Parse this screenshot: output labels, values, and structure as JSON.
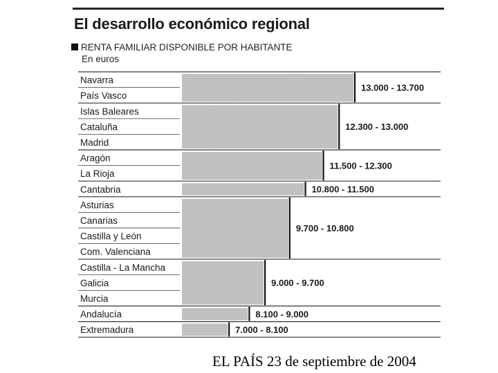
{
  "header": {
    "title": "El desarrollo económico regional",
    "subtitle": "RENTA FAMILIAR DISPONIBLE POR HABITANTE",
    "unit": "En euros"
  },
  "footer": {
    "source": "EL PAÍS 23 de septiembre de 2004"
  },
  "chart_data": {
    "type": "bar",
    "orientation": "horizontal",
    "title": "El desarrollo económico regional",
    "subtitle": "RENTA FAMILIAR DISPONIBLE POR HABITANTE",
    "unit": "En euros",
    "groups": [
      {
        "label": "13.000 - 13.700",
        "min": 13000,
        "max": 13700,
        "regions": [
          "Navarra",
          "País Vasco"
        ]
      },
      {
        "label": "12.300 - 13.000",
        "min": 12300,
        "max": 13000,
        "regions": [
          "Islas Baleares",
          "Cataluña",
          "Madrid"
        ]
      },
      {
        "label": "11.500 - 12.300",
        "min": 11500,
        "max": 12300,
        "regions": [
          "Aragón",
          "La Rioja"
        ]
      },
      {
        "label": "10.800 - 11.500",
        "min": 10800,
        "max": 11500,
        "regions": [
          "Cantabria"
        ]
      },
      {
        "label": "9.700 - 10.800",
        "min": 9700,
        "max": 10800,
        "regions": [
          "Asturias",
          "Canarias",
          "Castilla y León",
          "Com. Valenciana"
        ]
      },
      {
        "label": "9.000 - 9.700",
        "min": 9000,
        "max": 9700,
        "regions": [
          "Castilla - La Mancha",
          "Galicia",
          "Murcia"
        ]
      },
      {
        "label": "8.100 - 9.000",
        "min": 8100,
        "max": 9000,
        "regions": [
          "Andalucía"
        ]
      },
      {
        "label": "7.000 - 8.100",
        "min": 7000,
        "max": 8100,
        "regions": [
          "Extremadura"
        ]
      }
    ],
    "colors": {
      "bar": "#c6c6c6",
      "marker": "#111111",
      "rule": "#444444"
    }
  }
}
